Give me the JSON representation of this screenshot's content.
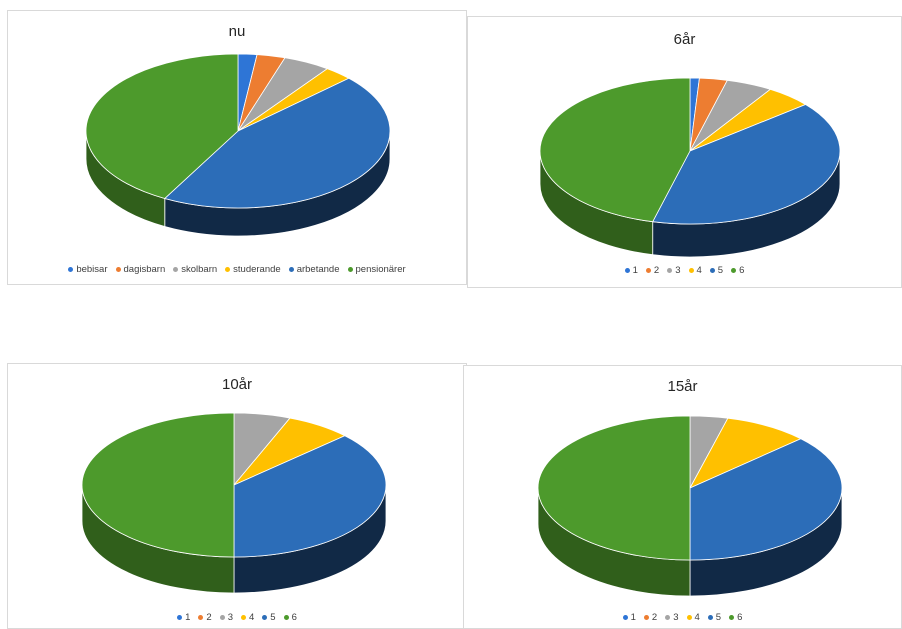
{
  "colors": {
    "1": "#2e75d6",
    "2": "#ed7d31",
    "3": "#a5a5a5",
    "4": "#ffc000",
    "5": "#2c6db8",
    "6": "#4d9a2c"
  },
  "chart_data": [
    {
      "type": "pie",
      "title": "nu",
      "categories": [
        "bebisar",
        "dagisbarn",
        "skolbarn",
        "studerande",
        "arbetande",
        "pensionärer"
      ],
      "values": [
        2,
        3,
        5,
        3,
        45,
        42
      ]
    },
    {
      "type": "pie",
      "title": "6år",
      "categories": [
        "1",
        "2",
        "3",
        "4",
        "5",
        "6"
      ],
      "values": [
        1,
        3,
        5,
        5,
        40,
        46
      ]
    },
    {
      "type": "pie",
      "title": "10år",
      "categories": [
        "1",
        "2",
        "3",
        "4",
        "5",
        "6"
      ],
      "values": [
        0,
        0,
        6,
        7,
        37,
        50
      ]
    },
    {
      "type": "pie",
      "title": "15år",
      "categories": [
        "1",
        "2",
        "3",
        "4",
        "5",
        "6"
      ],
      "values": [
        0,
        0,
        4,
        9,
        37,
        50
      ]
    }
  ]
}
